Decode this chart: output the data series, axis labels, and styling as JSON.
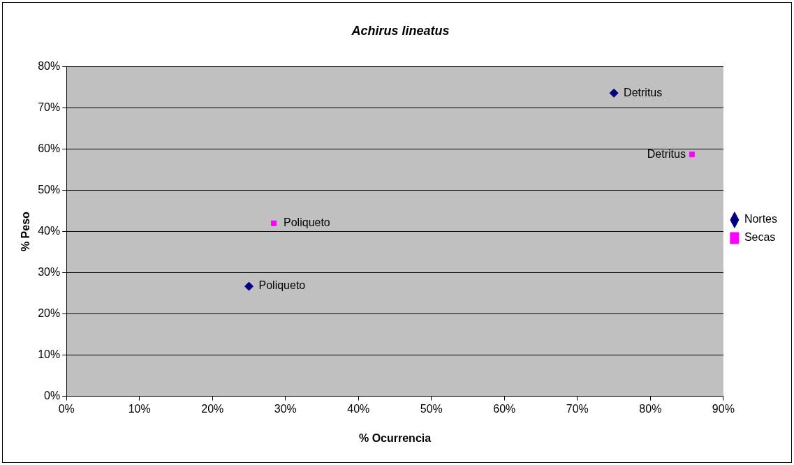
{
  "chart_data": {
    "type": "scatter",
    "title": "Achirus lineatus",
    "xlabel": "% Ocurrencia",
    "ylabel": "% Peso",
    "series": [
      {
        "name": "Nortes",
        "color": "#000080",
        "marker": "diamond",
        "x": [
          25,
          75
        ],
        "values": [
          26.7,
          73.6
        ]
      },
      {
        "name": "Secas",
        "color": "#ff00ff",
        "marker": "square",
        "x": [
          28.4,
          85.7
        ],
        "values": [
          42,
          58.7
        ]
      }
    ],
    "annotations": [
      {
        "text": "Poliqueto",
        "x": 25,
        "y": 26.7
      },
      {
        "text": "Detritus",
        "x": 75,
        "y": 73.6
      },
      {
        "text": "Poliqueto",
        "x": 28.4,
        "y": 42
      },
      {
        "text": "Detritus",
        "x": 85.7,
        "y": 58.7
      }
    ],
    "xlim": [
      0,
      90
    ],
    "ylim": [
      0,
      80
    ],
    "xticks": [
      {
        "value": 0,
        "label": "0%"
      },
      {
        "value": 10,
        "label": "10%"
      },
      {
        "value": 20,
        "label": "20%"
      },
      {
        "value": 30,
        "label": "30%"
      },
      {
        "value": 40,
        "label": "40%"
      },
      {
        "value": 50,
        "label": "50%"
      },
      {
        "value": 60,
        "label": "60%"
      },
      {
        "value": 70,
        "label": "70%"
      },
      {
        "value": 80,
        "label": "80%"
      },
      {
        "value": 90,
        "label": "90%"
      }
    ],
    "yticks": [
      {
        "value": 0,
        "label": "0%"
      },
      {
        "value": 10,
        "label": "10%"
      },
      {
        "value": 20,
        "label": "20%"
      },
      {
        "value": 30,
        "label": "30%"
      },
      {
        "value": 40,
        "label": "40%"
      },
      {
        "value": 50,
        "label": "50%"
      },
      {
        "value": 60,
        "label": "60%"
      },
      {
        "value": 70,
        "label": "70%"
      },
      {
        "value": 80,
        "label": "80%"
      }
    ],
    "grid": "y",
    "legend": "right"
  }
}
